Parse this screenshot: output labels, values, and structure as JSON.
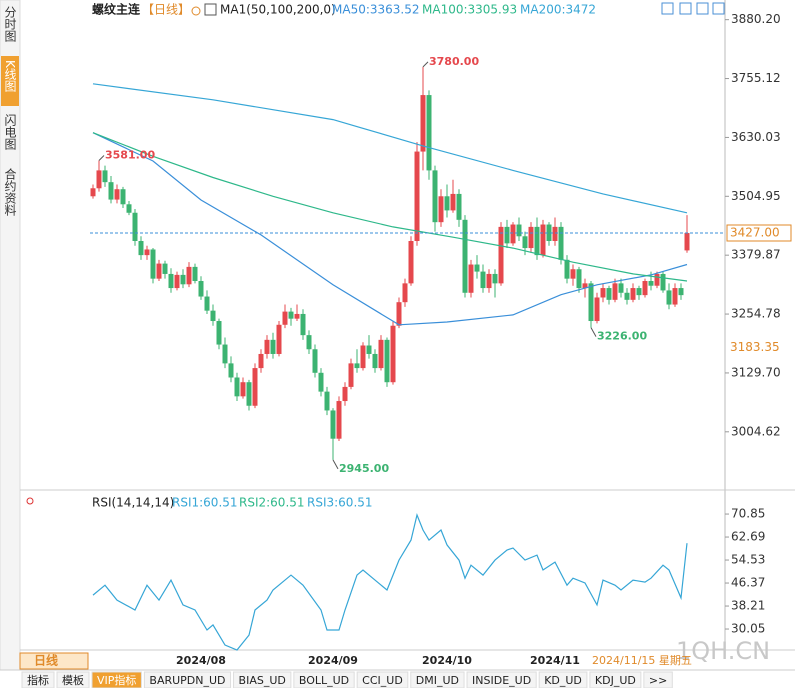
{
  "sidebar_tabs": [
    "分时图",
    "K线图",
    "闪电图",
    "合约资料"
  ],
  "period_button": "日线",
  "bottom_tabs": [
    "指标",
    "模板",
    "VIP指标",
    "BARUPDN_UD",
    "BIAS_UD",
    "BOLL_UD",
    "CCI_UD",
    "DMI_UD",
    "INSIDE_UD",
    "KD_UD",
    "KDJ_UD",
    ">>"
  ],
  "cursor_date": "2024/11/15 星期五",
  "watermark": "1QH.CN",
  "chart_data": [
    {
      "type": "candlestick",
      "title": "螺纹主连",
      "period": "【日线】",
      "indicator": "MA1(50,100,200,0)",
      "up_color": "#e5484d",
      "down_color": "#3cb371",
      "categories": [
        null,
        null,
        null,
        null,
        null,
        null,
        null,
        null,
        null,
        null,
        null,
        null,
        null,
        null,
        null,
        null,
        null,
        null,
        "2024/08",
        null,
        null,
        null,
        null,
        null,
        null,
        null,
        null,
        null,
        null,
        null,
        null,
        null,
        null,
        null,
        null,
        null,
        null,
        null,
        null,
        null,
        "2024/09",
        null,
        null,
        null,
        null,
        null,
        null,
        null,
        null,
        null,
        null,
        null,
        null,
        null,
        null,
        null,
        null,
        null,
        null,
        "2024/10",
        null,
        null,
        null,
        null,
        null,
        null,
        null,
        null,
        null,
        null,
        null,
        null,
        null,
        null,
        null,
        null,
        null,
        "2024/11",
        null,
        null,
        null,
        null,
        null,
        null,
        null,
        null,
        null,
        null,
        null,
        null,
        null,
        null,
        null,
        null,
        null,
        null,
        null,
        null,
        null,
        null
      ],
      "candles": [
        [
          3505,
          3530,
          3500,
          3522
        ],
        [
          3522,
          3581,
          3515,
          3560
        ],
        [
          3560,
          3570,
          3525,
          3535
        ],
        [
          3535,
          3548,
          3490,
          3498
        ],
        [
          3498,
          3530,
          3490,
          3520
        ],
        [
          3520,
          3525,
          3480,
          3488
        ],
        [
          3488,
          3495,
          3465,
          3470
        ],
        [
          3470,
          3478,
          3400,
          3410
        ],
        [
          3410,
          3420,
          3370,
          3380
        ],
        [
          3380,
          3400,
          3370,
          3392
        ],
        [
          3392,
          3395,
          3320,
          3330
        ],
        [
          3330,
          3370,
          3325,
          3362
        ],
        [
          3362,
          3368,
          3330,
          3340
        ],
        [
          3340,
          3352,
          3300,
          3310
        ],
        [
          3310,
          3345,
          3305,
          3338
        ],
        [
          3338,
          3350,
          3310,
          3318
        ],
        [
          3318,
          3365,
          3312,
          3355
        ],
        [
          3355,
          3362,
          3320,
          3325
        ],
        [
          3325,
          3335,
          3285,
          3292
        ],
        [
          3292,
          3305,
          3255,
          3262
        ],
        [
          3262,
          3275,
          3230,
          3240
        ],
        [
          3240,
          3245,
          3180,
          3190
        ],
        [
          3190,
          3205,
          3140,
          3150
        ],
        [
          3150,
          3165,
          3110,
          3120
        ],
        [
          3120,
          3130,
          3070,
          3080
        ],
        [
          3080,
          3120,
          3075,
          3110
        ],
        [
          3110,
          3115,
          3050,
          3060
        ],
        [
          3060,
          3150,
          3055,
          3140
        ],
        [
          3140,
          3180,
          3130,
          3170
        ],
        [
          3170,
          3210,
          3160,
          3200
        ],
        [
          3200,
          3215,
          3160,
          3170
        ],
        [
          3170,
          3240,
          3165,
          3232
        ],
        [
          3232,
          3275,
          3225,
          3260
        ],
        [
          3260,
          3268,
          3230,
          3245
        ],
        [
          3245,
          3275,
          3240,
          3255
        ],
        [
          3255,
          3265,
          3200,
          3210
        ],
        [
          3210,
          3220,
          3170,
          3180
        ],
        [
          3180,
          3190,
          3120,
          3130
        ],
        [
          3130,
          3140,
          3080,
          3090
        ],
        [
          3090,
          3100,
          3040,
          3050
        ],
        [
          3050,
          3055,
          2945,
          2990
        ],
        [
          2990,
          3080,
          2985,
          3070
        ],
        [
          3070,
          3110,
          3060,
          3100
        ],
        [
          3100,
          3160,
          3095,
          3150
        ],
        [
          3150,
          3180,
          3130,
          3140
        ],
        [
          3140,
          3195,
          3135,
          3188
        ],
        [
          3188,
          3210,
          3160,
          3170
        ],
        [
          3170,
          3180,
          3130,
          3140
        ],
        [
          3140,
          3210,
          3135,
          3200
        ],
        [
          3200,
          3205,
          3100,
          3110
        ],
        [
          3110,
          3240,
          3105,
          3230
        ],
        [
          3230,
          3290,
          3225,
          3280
        ],
        [
          3280,
          3330,
          3270,
          3320
        ],
        [
          3320,
          3420,
          3315,
          3410
        ],
        [
          3410,
          3620,
          3400,
          3600
        ],
        [
          3600,
          3780,
          3560,
          3720
        ],
        [
          3720,
          3730,
          3540,
          3560
        ],
        [
          3560,
          3570,
          3430,
          3450
        ],
        [
          3450,
          3520,
          3440,
          3505
        ],
        [
          3505,
          3530,
          3460,
          3475
        ],
        [
          3475,
          3540,
          3470,
          3510
        ],
        [
          3510,
          3520,
          3440,
          3455
        ],
        [
          3455,
          3465,
          3290,
          3300
        ],
        [
          3300,
          3370,
          3290,
          3360
        ],
        [
          3360,
          3380,
          3330,
          3345
        ],
        [
          3345,
          3360,
          3300,
          3310
        ],
        [
          3310,
          3350,
          3300,
          3340
        ],
        [
          3340,
          3350,
          3290,
          3320
        ],
        [
          3320,
          3450,
          3315,
          3440
        ],
        [
          3440,
          3455,
          3395,
          3405
        ],
        [
          3405,
          3450,
          3400,
          3445
        ],
        [
          3445,
          3460,
          3410,
          3420
        ],
        [
          3420,
          3430,
          3380,
          3395
        ],
        [
          3395,
          3450,
          3385,
          3440
        ],
        [
          3440,
          3460,
          3370,
          3380
        ],
        [
          3380,
          3455,
          3375,
          3445
        ],
        [
          3445,
          3450,
          3400,
          3410
        ],
        [
          3410,
          3460,
          3400,
          3440
        ],
        [
          3440,
          3450,
          3360,
          3370
        ],
        [
          3370,
          3380,
          3320,
          3330
        ],
        [
          3330,
          3360,
          3315,
          3350
        ],
        [
          3350,
          3355,
          3300,
          3310
        ],
        [
          3310,
          3330,
          3290,
          3320
        ],
        [
          3320,
          3325,
          3226,
          3240
        ],
        [
          3240,
          3300,
          3235,
          3290
        ],
        [
          3290,
          3320,
          3280,
          3310
        ],
        [
          3310,
          3315,
          3275,
          3285
        ],
        [
          3285,
          3330,
          3280,
          3320
        ],
        [
          3320,
          3330,
          3290,
          3300
        ],
        [
          3300,
          3310,
          3275,
          3285
        ],
        [
          3285,
          3320,
          3280,
          3310
        ],
        [
          3310,
          3315,
          3285,
          3295
        ],
        [
          3295,
          3330,
          3290,
          3325
        ],
        [
          3325,
          3345,
          3305,
          3315
        ],
        [
          3315,
          3345,
          3310,
          3340
        ],
        [
          3340,
          3345,
          3300,
          3305
        ],
        [
          3305,
          3320,
          3265,
          3275
        ],
        [
          3275,
          3320,
          3270,
          3310
        ],
        [
          3310,
          3320,
          3285,
          3295
        ],
        [
          3390,
          3465,
          3385,
          3427
        ]
      ],
      "series": [
        {
          "name": "MA50:3363.52",
          "color": "#3a8fd9",
          "x": [
            0,
            10,
            18,
            28,
            40,
            51,
            59,
            70,
            78,
            84,
            93,
            99
          ],
          "values": [
            3640,
            3580,
            3497,
            3423,
            3317,
            3232,
            3238,
            3253,
            3296,
            3317,
            3338,
            3360
          ]
        },
        {
          "name": "MA100:3305.93",
          "color": "#2eb88a",
          "x": [
            0,
            10,
            20,
            30,
            40,
            50,
            60,
            70,
            80,
            90,
            99
          ],
          "values": [
            3640,
            3590,
            3545,
            3505,
            3470,
            3440,
            3418,
            3395,
            3365,
            3340,
            3325
          ]
        },
        {
          "name": "MA200:3472",
          "color": "#36a6d6",
          "x": [
            0,
            20,
            40,
            55,
            70,
            85,
            99
          ],
          "values": [
            3744,
            3710,
            3668,
            3612,
            3560,
            3510,
            3470
          ]
        }
      ],
      "ylim": [
        2881,
        3905
      ],
      "yticks": [
        {
          "value": 3880.2,
          "label": "3880.20"
        },
        3755.12,
        3630.03,
        3504.95,
        3379.87,
        3254.78,
        {
          "value": 3129.7,
          "label": "3129.70"
        },
        3004.62
      ],
      "annotations": [
        {
          "value": 3780,
          "label": "3780.00",
          "x": 55
        },
        {
          "value": 3581,
          "label": "3581.00",
          "x": 1
        },
        {
          "value": 2945,
          "label": "2945.00",
          "x": 40
        },
        {
          "value": 3226,
          "label": "3226.00",
          "x": 83
        }
      ],
      "current_price": {
        "value": 3427,
        "label": "3427.00"
      },
      "level_marker": 3183.35
    },
    {
      "type": "line",
      "title": "RSI(14,14,14)",
      "series": [
        {
          "name": "RSI1:60.51",
          "color": "#36a6d6",
          "x": [
            0,
            2,
            4,
            7,
            9,
            11,
            13,
            15,
            17,
            19,
            20,
            22,
            24,
            26,
            27,
            29,
            30,
            33,
            35,
            38,
            39,
            41,
            42,
            44,
            45,
            47,
            49,
            50,
            51,
            53,
            54,
            55,
            56,
            58,
            59,
            61,
            62,
            63,
            65,
            67,
            69,
            70,
            72,
            74,
            75,
            77,
            79,
            80,
            82,
            84,
            85,
            87,
            88,
            90,
            92,
            93,
            95,
            96,
            98,
            99
          ],
          "values": [
            42.1,
            45.6,
            40.3,
            36.8,
            45.6,
            40.3,
            47.4,
            38.6,
            36.8,
            29.7,
            31.5,
            24.4,
            22.6,
            27.9,
            36.8,
            40.3,
            43.9,
            49.2,
            45.6,
            36.8,
            29.7,
            29.7,
            36.8,
            49.2,
            51.0,
            47.4,
            43.9,
            49.2,
            54.5,
            61.6,
            70.5,
            65.2,
            61.6,
            65.2,
            59.9,
            54.5,
            48.1,
            52.7,
            49.2,
            54.5,
            58.1,
            58.8,
            54.5,
            56.3,
            51.0,
            53.8,
            45.6,
            48.1,
            46.4,
            38.6,
            47.4,
            45.6,
            43.9,
            47.4,
            46.7,
            48.1,
            52.7,
            51.0,
            41.1,
            60.5
          ]
        }
      ],
      "other_legend": [
        {
          "name": "RSI2:60.51",
          "color": "#2eb88a"
        },
        {
          "name": "RSI3:60.51",
          "color": "#36a6d6"
        }
      ],
      "ylim": [
        21.9,
        76.9
      ],
      "yticks": [
        70.85,
        62.69,
        54.53,
        46.37,
        38.21,
        30.05
      ]
    }
  ]
}
